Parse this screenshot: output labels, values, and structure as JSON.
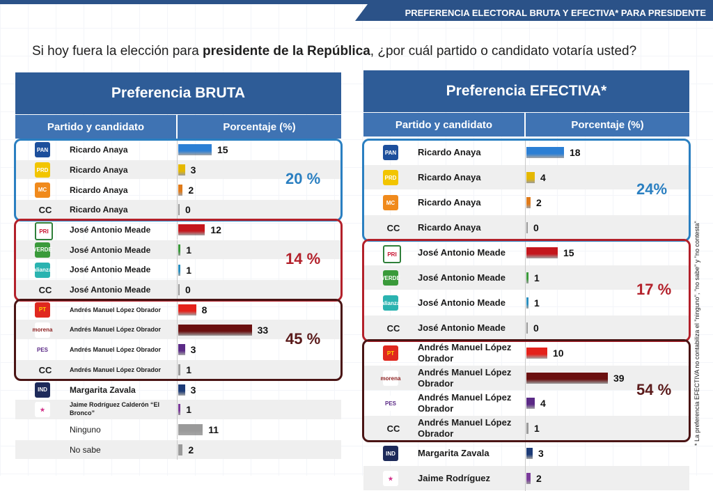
{
  "header": {
    "banner": "PREFERENCIA ELECTORAL BRUTA Y EFECTIVA* PARA PRESIDENTE"
  },
  "question": {
    "prefix": "Si hoy fuera la elección para ",
    "bold": "presidente de la República",
    "suffix": ", ¿por cuál partido o candidato votaría usted?"
  },
  "footnote": "* La preferencia EFECTIVA no contabiliza el \"ninguno\", \"no sabe\" y \"no contesta\"",
  "colors": {
    "blue_group": "#2a7fc1",
    "red_group": "#b3202a",
    "dark_group": "#4a1414",
    "header": "#2e5c97",
    "subheader": "#3f73b3"
  },
  "chart_data": [
    {
      "type": "bar",
      "title": "Preferencia BRUTA",
      "xlabel": "Partido y candidato",
      "ylabel": "Porcentaje (%)",
      "rows": [
        {
          "party": "PAN",
          "candidate": "Ricardo Anaya",
          "value": 15
        },
        {
          "party": "PRD",
          "candidate": "Ricardo Anaya",
          "value": 3
        },
        {
          "party": "MC",
          "candidate": "Ricardo Anaya",
          "value": 2
        },
        {
          "party": "CC",
          "candidate": "Ricardo Anaya",
          "value": 0
        },
        {
          "party": "PRI",
          "candidate": "José Antonio Meade",
          "value": 12
        },
        {
          "party": "VERDE",
          "candidate": "José Antonio Meade",
          "value": 1
        },
        {
          "party": "alianza",
          "candidate": "José Antonio Meade",
          "value": 1
        },
        {
          "party": "CC",
          "candidate": "José Antonio Meade",
          "value": 0
        },
        {
          "party": "PT",
          "candidate": "Andrés Manuel López Obrador",
          "value": 8
        },
        {
          "party": "morena",
          "candidate": "Andrés Manuel López Obrador",
          "value": 33
        },
        {
          "party": "PES",
          "candidate": "Andrés Manuel López Obrador",
          "value": 3
        },
        {
          "party": "CC",
          "candidate": "Andrés Manuel López Obrador",
          "value": 1
        },
        {
          "party": "IND",
          "candidate": "Margarita Zavala",
          "value": 3
        },
        {
          "party": "IND2",
          "candidate": "Jaime Rodríguez Calderón “El Bronco”",
          "value": 1
        },
        {
          "party": "",
          "candidate": "Ninguno",
          "value": 11
        },
        {
          "party": "",
          "candidate": "No sabe",
          "value": 2
        }
      ],
      "groups": [
        {
          "label": "20 %",
          "rows": [
            0,
            3
          ],
          "tone": "blue"
        },
        {
          "label": "14 %",
          "rows": [
            4,
            7
          ],
          "tone": "red"
        },
        {
          "label": "45 %",
          "rows": [
            8,
            11
          ],
          "tone": "dark"
        }
      ]
    },
    {
      "type": "bar",
      "title": "Preferencia EFECTIVA*",
      "xlabel": "Partido y candidato",
      "ylabel": "Porcentaje (%)",
      "rows": [
        {
          "party": "PAN",
          "candidate": "Ricardo Anaya",
          "value": 18
        },
        {
          "party": "PRD",
          "candidate": "Ricardo Anaya",
          "value": 4
        },
        {
          "party": "MC",
          "candidate": "Ricardo Anaya",
          "value": 2
        },
        {
          "party": "CC",
          "candidate": "Ricardo Anaya",
          "value": 0
        },
        {
          "party": "PRI",
          "candidate": "José Antonio Meade",
          "value": 15
        },
        {
          "party": "VERDE",
          "candidate": "José Antonio Meade",
          "value": 1
        },
        {
          "party": "alianza",
          "candidate": "José Antonio Meade",
          "value": 1
        },
        {
          "party": "CC",
          "candidate": "José Antonio Meade",
          "value": 0
        },
        {
          "party": "PT",
          "candidate": "Andrés Manuel López Obrador",
          "value": 10
        },
        {
          "party": "morena",
          "candidate": "Andrés Manuel López Obrador",
          "value": 39
        },
        {
          "party": "PES",
          "candidate": "Andrés Manuel López Obrador",
          "value": 4
        },
        {
          "party": "CC",
          "candidate": "Andrés Manuel López Obrador",
          "value": 1
        },
        {
          "party": "IND",
          "candidate": "Margarita Zavala",
          "value": 3
        },
        {
          "party": "IND2",
          "candidate": "Jaime Rodríguez",
          "value": 2
        }
      ],
      "groups": [
        {
          "label": "24%",
          "rows": [
            0,
            3
          ],
          "tone": "blue"
        },
        {
          "label": "17 %",
          "rows": [
            4,
            7
          ],
          "tone": "red"
        },
        {
          "label": "54 %",
          "rows": [
            8,
            11
          ],
          "tone": "dark"
        }
      ]
    }
  ]
}
